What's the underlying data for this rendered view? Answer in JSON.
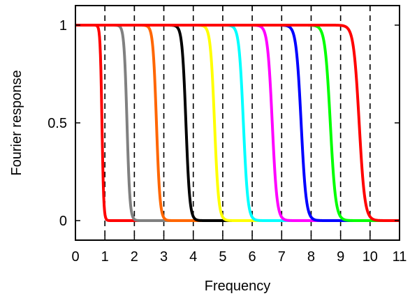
{
  "chart_data": {
    "type": "line",
    "title": "",
    "xlabel": "Frequency",
    "ylabel": "Fourier response",
    "xlim": [
      0,
      11
    ],
    "ylim": [
      -0.1,
      1.1
    ],
    "xticks": [
      0,
      1,
      2,
      3,
      4,
      5,
      6,
      7,
      8,
      9,
      10,
      11
    ],
    "yticks": [
      0,
      0.5,
      1
    ],
    "ytick_labels": [
      "0",
      "0.5",
      "1"
    ],
    "grid": false,
    "legend": "none",
    "vertical_dashed_lines_at": [
      1,
      2,
      3,
      4,
      5,
      6,
      7,
      8,
      9,
      10
    ],
    "series": [
      {
        "color": "#ff0000",
        "cutoff": 0.9,
        "transition_width": 0.03
      },
      {
        "color": "#808080",
        "cutoff": 1.75,
        "transition_width": 0.05
      },
      {
        "color": "#ff6600",
        "cutoff": 2.75,
        "transition_width": 0.06
      },
      {
        "color": "#000000",
        "cutoff": 3.75,
        "transition_width": 0.065
      },
      {
        "color": "#ffff00",
        "cutoff": 4.72,
        "transition_width": 0.07
      },
      {
        "color": "#00ffff",
        "cutoff": 5.7,
        "transition_width": 0.075
      },
      {
        "color": "#ff00ff",
        "cutoff": 6.68,
        "transition_width": 0.08
      },
      {
        "color": "#0000ff",
        "cutoff": 7.66,
        "transition_width": 0.085
      },
      {
        "color": "#00ff00",
        "cutoff": 8.65,
        "transition_width": 0.09
      },
      {
        "color": "#ff0000",
        "cutoff": 9.63,
        "transition_width": 0.095
      }
    ]
  }
}
